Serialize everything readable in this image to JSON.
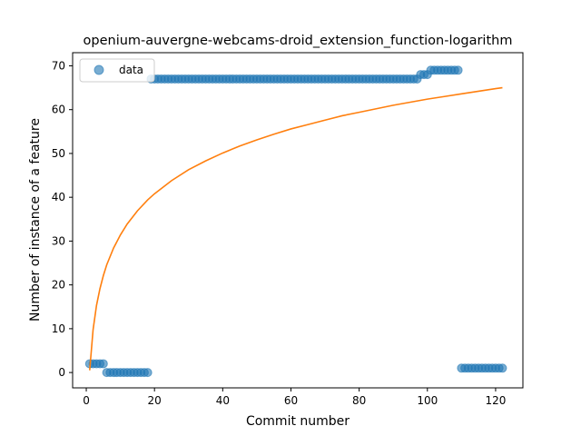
{
  "chart_data": {
    "type": "scatter",
    "title": "openium-auvergne-webcams-droid_extension_function-logarithm",
    "xlabel": "Commit number",
    "ylabel": "Number of instance of a feature",
    "xlim": [
      -4,
      128
    ],
    "ylim": [
      -3.5,
      73
    ],
    "xticks": [
      0,
      20,
      40,
      60,
      80,
      100,
      120
    ],
    "yticks": [
      0,
      10,
      20,
      30,
      40,
      50,
      60,
      70
    ],
    "grid": false,
    "legend": {
      "placement": "top-left",
      "entries": [
        "data"
      ]
    },
    "colors": {
      "data": "#1f77b4",
      "fit": "#ff7f0e"
    },
    "series": [
      {
        "name": "data",
        "kind": "scatter",
        "points": [
          [
            1,
            2
          ],
          [
            2,
            2
          ],
          [
            3,
            2
          ],
          [
            4,
            2
          ],
          [
            5,
            2
          ],
          [
            6,
            0
          ],
          [
            7,
            0
          ],
          [
            8,
            0
          ],
          [
            9,
            0
          ],
          [
            10,
            0
          ],
          [
            11,
            0
          ],
          [
            12,
            0
          ],
          [
            13,
            0
          ],
          [
            14,
            0
          ],
          [
            15,
            0
          ],
          [
            16,
            0
          ],
          [
            17,
            0
          ],
          [
            18,
            0
          ],
          [
            19,
            67
          ],
          [
            20,
            67
          ],
          [
            21,
            67
          ],
          [
            22,
            67
          ],
          [
            23,
            67
          ],
          [
            24,
            67
          ],
          [
            25,
            67
          ],
          [
            26,
            67
          ],
          [
            27,
            67
          ],
          [
            28,
            67
          ],
          [
            29,
            67
          ],
          [
            30,
            67
          ],
          [
            31,
            67
          ],
          [
            32,
            67
          ],
          [
            33,
            67
          ],
          [
            34,
            67
          ],
          [
            35,
            67
          ],
          [
            36,
            67
          ],
          [
            37,
            67
          ],
          [
            38,
            67
          ],
          [
            39,
            67
          ],
          [
            40,
            67
          ],
          [
            41,
            67
          ],
          [
            42,
            67
          ],
          [
            43,
            67
          ],
          [
            44,
            67
          ],
          [
            45,
            67
          ],
          [
            46,
            67
          ],
          [
            47,
            67
          ],
          [
            48,
            67
          ],
          [
            49,
            67
          ],
          [
            50,
            67
          ],
          [
            51,
            67
          ],
          [
            52,
            67
          ],
          [
            53,
            67
          ],
          [
            54,
            67
          ],
          [
            55,
            67
          ],
          [
            56,
            67
          ],
          [
            57,
            67
          ],
          [
            58,
            67
          ],
          [
            59,
            67
          ],
          [
            60,
            67
          ],
          [
            61,
            67
          ],
          [
            62,
            67
          ],
          [
            63,
            67
          ],
          [
            64,
            67
          ],
          [
            65,
            67
          ],
          [
            66,
            67
          ],
          [
            67,
            67
          ],
          [
            68,
            67
          ],
          [
            69,
            67
          ],
          [
            70,
            67
          ],
          [
            71,
            67
          ],
          [
            72,
            67
          ],
          [
            73,
            67
          ],
          [
            74,
            67
          ],
          [
            75,
            67
          ],
          [
            76,
            67
          ],
          [
            77,
            67
          ],
          [
            78,
            67
          ],
          [
            79,
            67
          ],
          [
            80,
            67
          ],
          [
            81,
            67
          ],
          [
            82,
            67
          ],
          [
            83,
            67
          ],
          [
            84,
            67
          ],
          [
            85,
            67
          ],
          [
            86,
            67
          ],
          [
            87,
            67
          ],
          [
            88,
            67
          ],
          [
            89,
            67
          ],
          [
            90,
            67
          ],
          [
            91,
            67
          ],
          [
            92,
            67
          ],
          [
            93,
            67
          ],
          [
            94,
            67
          ],
          [
            95,
            67
          ],
          [
            96,
            67
          ],
          [
            97,
            67
          ],
          [
            98,
            68
          ],
          [
            99,
            68
          ],
          [
            100,
            68
          ],
          [
            101,
            69
          ],
          [
            102,
            69
          ],
          [
            103,
            69
          ],
          [
            104,
            69
          ],
          [
            105,
            69
          ],
          [
            106,
            69
          ],
          [
            107,
            69
          ],
          [
            108,
            69
          ],
          [
            109,
            69
          ],
          [
            110,
            1
          ],
          [
            111,
            1
          ],
          [
            112,
            1
          ],
          [
            113,
            1
          ],
          [
            114,
            1
          ],
          [
            115,
            1
          ],
          [
            116,
            1
          ],
          [
            117,
            1
          ],
          [
            118,
            1
          ],
          [
            119,
            1
          ],
          [
            120,
            1
          ],
          [
            121,
            1
          ],
          [
            122,
            1
          ]
        ]
      },
      {
        "kind": "line",
        "points": [
          [
            1,
            0.5
          ],
          [
            2,
            9.8
          ],
          [
            3,
            15.3
          ],
          [
            4,
            19.1
          ],
          [
            5,
            22.1
          ],
          [
            6,
            24.6
          ],
          [
            8,
            28.4
          ],
          [
            10,
            31.4
          ],
          [
            12,
            33.9
          ],
          [
            15,
            36.9
          ],
          [
            18,
            39.4
          ],
          [
            20,
            40.8
          ],
          [
            25,
            43.8
          ],
          [
            30,
            46.3
          ],
          [
            35,
            48.3
          ],
          [
            40,
            50.1
          ],
          [
            45,
            51.7
          ],
          [
            50,
            53.1
          ],
          [
            55,
            54.4
          ],
          [
            60,
            55.6
          ],
          [
            65,
            56.6
          ],
          [
            70,
            57.6
          ],
          [
            75,
            58.6
          ],
          [
            80,
            59.4
          ],
          [
            85,
            60.2
          ],
          [
            90,
            61.0
          ],
          [
            95,
            61.7
          ],
          [
            100,
            62.4
          ],
          [
            105,
            63.0
          ],
          [
            110,
            63.6
          ],
          [
            115,
            64.2
          ],
          [
            120,
            64.8
          ],
          [
            122,
            65.0
          ]
        ]
      }
    ]
  }
}
